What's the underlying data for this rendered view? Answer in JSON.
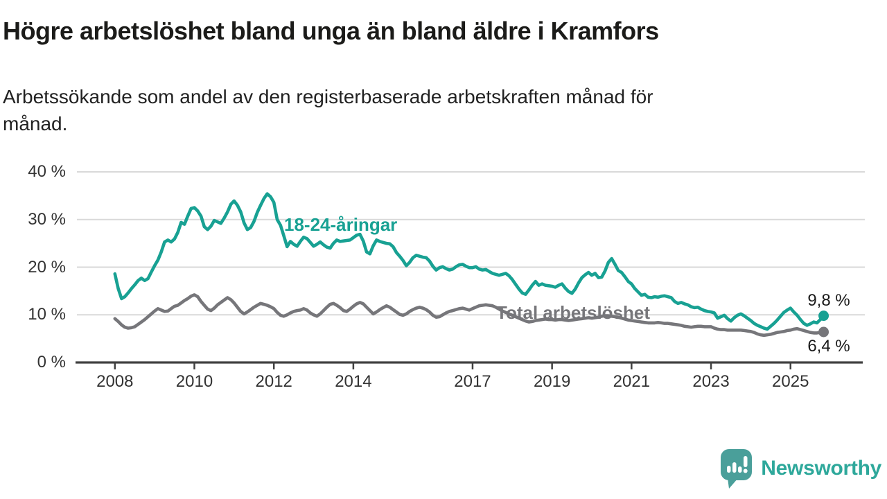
{
  "header": {
    "title": "Högre arbetslöshet bland unga än bland äldre i Kramfors",
    "subtitle_lines": [
      "Arbetssökande som andel av den registerbaserade arbetskraften månad för",
      "månad."
    ]
  },
  "chart_data": {
    "type": "line",
    "title": "Högre arbetslöshet bland unga än bland äldre i Kramfors",
    "subtitle": "Arbetssökande som andel av den registerbaserade arbetskraften månad för månad.",
    "xlabel": "",
    "ylabel": "",
    "ylim": [
      0,
      40
    ],
    "grid": true,
    "legend_position": "inline-labels",
    "x_start_year": 2008,
    "x_step_years": 0.0833333,
    "y_ticks": [
      {
        "value": 0,
        "label": "0 %"
      },
      {
        "value": 10,
        "label": "10 %"
      },
      {
        "value": 20,
        "label": "20 %"
      },
      {
        "value": 30,
        "label": "30 %"
      },
      {
        "value": 40,
        "label": "40 %"
      }
    ],
    "x_ticks": [
      {
        "value": 2008,
        "label": "2008"
      },
      {
        "value": 2010,
        "label": "2010"
      },
      {
        "value": 2012,
        "label": "2012"
      },
      {
        "value": 2014,
        "label": "2014"
      },
      {
        "value": 2017,
        "label": "2017"
      },
      {
        "value": 2019,
        "label": "2019"
      },
      {
        "value": 2021,
        "label": "2021"
      },
      {
        "value": 2023,
        "label": "2023"
      },
      {
        "value": 2025,
        "label": "2025"
      }
    ],
    "series": [
      {
        "name": "18-24-åringar",
        "color": "#18a193",
        "end_label": "9,8 %",
        "end_value": 9.8,
        "values": [
          18.6,
          15.5,
          13.4,
          13.8,
          14.6,
          15.5,
          16.3,
          17.2,
          17.7,
          17.2,
          17.6,
          19.0,
          20.3,
          21.5,
          23.2,
          25.3,
          25.7,
          25.3,
          25.9,
          27.3,
          29.4,
          29.0,
          30.7,
          32.3,
          32.5,
          31.8,
          30.7,
          28.5,
          27.9,
          28.6,
          29.8,
          29.5,
          29.2,
          30.3,
          31.6,
          33.2,
          33.9,
          33.0,
          31.6,
          29.3,
          27.9,
          28.3,
          29.6,
          31.5,
          33.0,
          34.4,
          35.4,
          34.8,
          33.6,
          30.0,
          28.8,
          26.6,
          24.3,
          25.4,
          24.8,
          24.4,
          25.4,
          26.3,
          26.0,
          25.2,
          24.4,
          24.8,
          25.3,
          24.7,
          24.2,
          24.0,
          25.0,
          25.7,
          25.4,
          25.5,
          25.6,
          25.7,
          26.2,
          26.7,
          26.9,
          25.5,
          23.2,
          22.8,
          24.5,
          25.7,
          25.4,
          25.2,
          25.0,
          24.9,
          24.3,
          23.1,
          22.3,
          21.4,
          20.3,
          21.0,
          22.0,
          22.5,
          22.3,
          22.1,
          22.0,
          21.3,
          20.2,
          19.4,
          19.9,
          20.1,
          19.7,
          19.4,
          19.6,
          20.1,
          20.5,
          20.6,
          20.2,
          19.9,
          19.9,
          20.1,
          19.6,
          19.4,
          19.5,
          19.1,
          18.7,
          18.5,
          18.3,
          18.5,
          18.7,
          18.2,
          17.4,
          16.4,
          15.4,
          14.6,
          14.3,
          15.2,
          16.2,
          17.0,
          16.2,
          16.5,
          16.2,
          16.1,
          16.0,
          15.8,
          16.2,
          16.5,
          15.6,
          14.9,
          14.5,
          15.4,
          16.7,
          17.8,
          18.4,
          18.9,
          18.3,
          18.7,
          17.8,
          17.9,
          19.2,
          21.0,
          21.8,
          20.6,
          19.3,
          18.9,
          18.0,
          17.0,
          16.5,
          15.5,
          14.8,
          14.1,
          14.3,
          13.7,
          13.6,
          13.8,
          13.7,
          13.9,
          14.0,
          13.8,
          13.6,
          12.8,
          12.4,
          12.6,
          12.3,
          12.1,
          11.7,
          11.5,
          11.6,
          11.2,
          10.9,
          10.7,
          10.6,
          10.4,
          9.3,
          9.6,
          9.9,
          9.2,
          8.7,
          9.4,
          9.9,
          10.2,
          9.8,
          9.3,
          8.8,
          8.2,
          7.8,
          7.5,
          7.2,
          7.0,
          7.6,
          8.2,
          8.9,
          9.7,
          10.5,
          11.0,
          11.4,
          10.6,
          9.9,
          9.0,
          8.2,
          7.8,
          8.1,
          8.5,
          8.3,
          9.0,
          9.8
        ]
      },
      {
        "name": "Total arbetslöshet",
        "color": "#76767a",
        "end_label": "6,4 %",
        "end_value": 6.4,
        "values": [
          9.2,
          8.6,
          7.9,
          7.4,
          7.2,
          7.3,
          7.5,
          8.0,
          8.5,
          9.0,
          9.6,
          10.2,
          10.8,
          11.3,
          11.0,
          10.7,
          10.8,
          11.3,
          11.8,
          12.0,
          12.5,
          13.0,
          13.4,
          13.9,
          14.2,
          13.8,
          12.8,
          12.0,
          11.2,
          10.9,
          11.4,
          12.1,
          12.6,
          13.1,
          13.6,
          13.2,
          12.5,
          11.6,
          10.7,
          10.2,
          10.6,
          11.1,
          11.6,
          12.0,
          12.4,
          12.2,
          12.0,
          11.7,
          11.3,
          10.5,
          9.9,
          9.7,
          10.0,
          10.4,
          10.7,
          10.9,
          11.0,
          11.3,
          11.0,
          10.4,
          10.0,
          9.7,
          10.2,
          10.9,
          11.6,
          12.2,
          12.4,
          12.0,
          11.5,
          10.9,
          10.7,
          11.2,
          11.8,
          12.3,
          12.6,
          12.3,
          11.6,
          10.9,
          10.2,
          10.6,
          11.1,
          11.5,
          11.9,
          11.6,
          11.1,
          10.6,
          10.1,
          9.9,
          10.2,
          10.7,
          11.1,
          11.4,
          11.6,
          11.4,
          11.1,
          10.6,
          9.9,
          9.5,
          9.6,
          10.0,
          10.4,
          10.7,
          10.9,
          11.1,
          11.3,
          11.4,
          11.2,
          11.0,
          11.3,
          11.6,
          11.9,
          12.0,
          12.1,
          12.0,
          11.9,
          11.6,
          11.2,
          10.8,
          10.5,
          10.2,
          9.9,
          9.6,
          9.3,
          9.0,
          8.7,
          8.5,
          8.6,
          8.8,
          8.9,
          9.0,
          9.1,
          9.0,
          9.0,
          8.9,
          9.0,
          9.0,
          8.9,
          8.8,
          8.9,
          9.0,
          9.1,
          9.2,
          9.3,
          9.4,
          9.3,
          9.4,
          9.5,
          9.7,
          9.8,
          9.8,
          9.7,
          9.6,
          9.5,
          9.3,
          9.1,
          8.9,
          8.8,
          8.7,
          8.6,
          8.5,
          8.4,
          8.3,
          8.3,
          8.3,
          8.4,
          8.3,
          8.2,
          8.2,
          8.1,
          8.0,
          7.9,
          7.8,
          7.6,
          7.5,
          7.4,
          7.5,
          7.6,
          7.6,
          7.5,
          7.5,
          7.5,
          7.2,
          7.0,
          6.9,
          6.9,
          6.8,
          6.8,
          6.8,
          6.8,
          6.8,
          6.7,
          6.6,
          6.5,
          6.3,
          6.0,
          5.8,
          5.7,
          5.8,
          5.9,
          6.1,
          6.3,
          6.4,
          6.5,
          6.7,
          6.8,
          7.0,
          7.1,
          6.9,
          6.7,
          6.5,
          6.3,
          6.2,
          6.2,
          6.3,
          6.4
        ]
      }
    ],
    "colors": {
      "grid": "#d9d9d9",
      "axis": "#414141",
      "tick_text": "#333333"
    }
  },
  "footer": {
    "brand": "Newsworthy",
    "logo_color": "#4a9f9a",
    "brand_text_color": "#2ea89b"
  }
}
